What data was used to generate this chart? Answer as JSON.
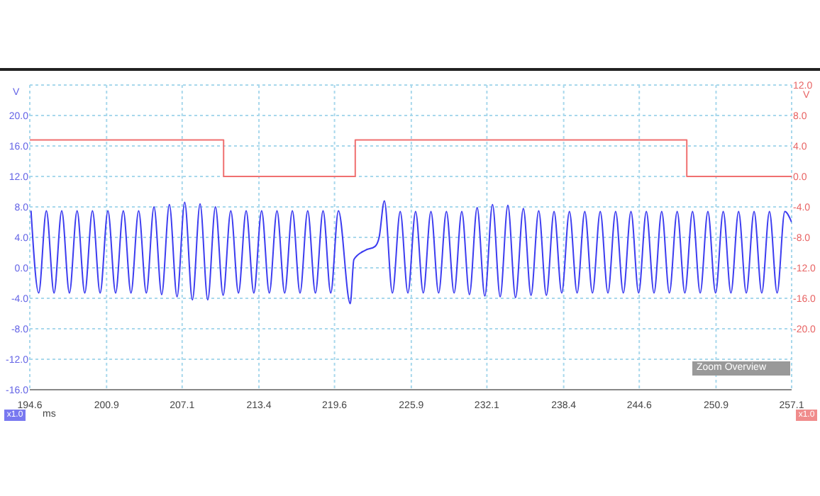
{
  "chart_data": {
    "type": "line",
    "xlabel": "ms",
    "ylabel": "V",
    "y2label": "V",
    "annotations": [
      "Zoom Overview",
      "x1.0",
      "x1.0"
    ],
    "xlim": [
      194.6,
      257.1
    ],
    "xticks": [
      194.6,
      200.9,
      207.1,
      213.4,
      219.6,
      225.9,
      232.1,
      238.4,
      244.6,
      250.9,
      257.1
    ],
    "ylim": [
      -16,
      24
    ],
    "yticks": [
      {
        "value": -16,
        "label": "-16.0"
      },
      {
        "value": -12,
        "label": "-12.0"
      },
      {
        "value": -8,
        "label": "-8.0"
      },
      {
        "value": -4,
        "label": "-4.0"
      },
      {
        "value": 0,
        "label": "0.0"
      },
      {
        "value": 4,
        "label": "4.0"
      },
      {
        "value": 8,
        "label": "8.0"
      },
      {
        "value": 12,
        "label": "12.0"
      },
      {
        "value": 16,
        "label": "16.0"
      },
      {
        "value": 20,
        "label": "20.0"
      }
    ],
    "y2lim": [
      -28,
      12
    ],
    "y2ticks": [
      {
        "value": -20,
        "label": "-20.0"
      },
      {
        "value": -16,
        "label": "-16.0"
      },
      {
        "value": -12,
        "label": "-12.0"
      },
      {
        "value": -8,
        "label": "-8.0"
      },
      {
        "value": -4,
        "label": "-4.0"
      },
      {
        "value": 0,
        "label": "0.0"
      },
      {
        "value": 4,
        "label": "4.0"
      },
      {
        "value": 8,
        "label": "8.0"
      },
      {
        "value": 12,
        "label": "12.0"
      }
    ],
    "grid": true,
    "legend": false,
    "marker": "none",
    "line_style": "solid",
    "series": [
      {
        "type": "line",
        "color": "#3c3cf0",
        "x": [
          194.7,
          195.33,
          195.96,
          196.59,
          197.22,
          197.85,
          198.48,
          199.11,
          199.74,
          200.37,
          201.01,
          201.64,
          202.27,
          202.9,
          203.53,
          204.16,
          204.79,
          205.42,
          206.05,
          206.68,
          207.31,
          207.94,
          208.57,
          209.2,
          209.83,
          210.46,
          211.09,
          211.72,
          212.35,
          212.98,
          213.62,
          214.25,
          214.88,
          215.51,
          216.14,
          216.77,
          217.4,
          218.03,
          218.66,
          219.29,
          219.92,
          220.89,
          221.19,
          222.11,
          222.92,
          223.26,
          223.69,
          224.35,
          224.99,
          225.62,
          226.25,
          226.88,
          227.51,
          228.14,
          228.78,
          229.41,
          230.04,
          230.67,
          231.3,
          231.93,
          232.56,
          233.19,
          233.82,
          234.45,
          235.09,
          235.72,
          236.35,
          236.98,
          237.61,
          238.24,
          238.87,
          239.5,
          240.13,
          240.76,
          241.4,
          242.03,
          242.66,
          243.29,
          243.92,
          244.55,
          245.18,
          245.81,
          246.44,
          247.07,
          247.71,
          248.34,
          248.97,
          249.6,
          250.23,
          250.86,
          251.49,
          252.12,
          252.75,
          253.38,
          254.02,
          254.65,
          255.28,
          255.91,
          256.54,
          257.1
        ],
        "values": [
          7.5,
          -3.3,
          7.5,
          -3.3,
          7.5,
          -3.3,
          7.5,
          -3.3,
          7.5,
          -3.3,
          7.5,
          -3.3,
          7.5,
          -3.3,
          7.5,
          -3.3,
          8.0,
          -3.5,
          8.3,
          -3.8,
          8.6,
          -4.2,
          8.4,
          -4.2,
          8.0,
          -3.6,
          7.5,
          -3.3,
          7.5,
          -3.3,
          7.5,
          -3.3,
          7.5,
          -3.3,
          7.5,
          -3.3,
          7.5,
          -3.3,
          7.5,
          -3.3,
          7.5,
          -4.7,
          1.1,
          2.3,
          2.8,
          4.0,
          8.8,
          -3.3,
          7.4,
          -3.3,
          7.4,
          -3.3,
          7.4,
          -3.3,
          7.4,
          -3.3,
          7.4,
          -3.5,
          7.9,
          -3.7,
          8.3,
          -3.8,
          8.2,
          -3.9,
          7.8,
          -3.6,
          7.5,
          -3.6,
          7.4,
          -3.3,
          7.4,
          -3.3,
          7.4,
          -3.3,
          7.4,
          -3.3,
          7.4,
          -3.3,
          7.4,
          -3.3,
          7.4,
          -3.3,
          7.4,
          -3.3,
          7.4,
          -3.3,
          7.4,
          -3.3,
          7.4,
          -3.3,
          7.4,
          -3.3,
          7.4,
          -3.3,
          7.4,
          -3.3,
          7.4,
          -3.3,
          7.4,
          6.0
        ]
      },
      {
        "type": "step",
        "axis": "y2",
        "color": "#f07070",
        "x": [
          194.6,
          210.5,
          221.3,
          248.5,
          257.1
        ],
        "values": [
          4.8,
          0.0,
          4.8,
          0.0,
          0.0
        ]
      }
    ]
  }
}
